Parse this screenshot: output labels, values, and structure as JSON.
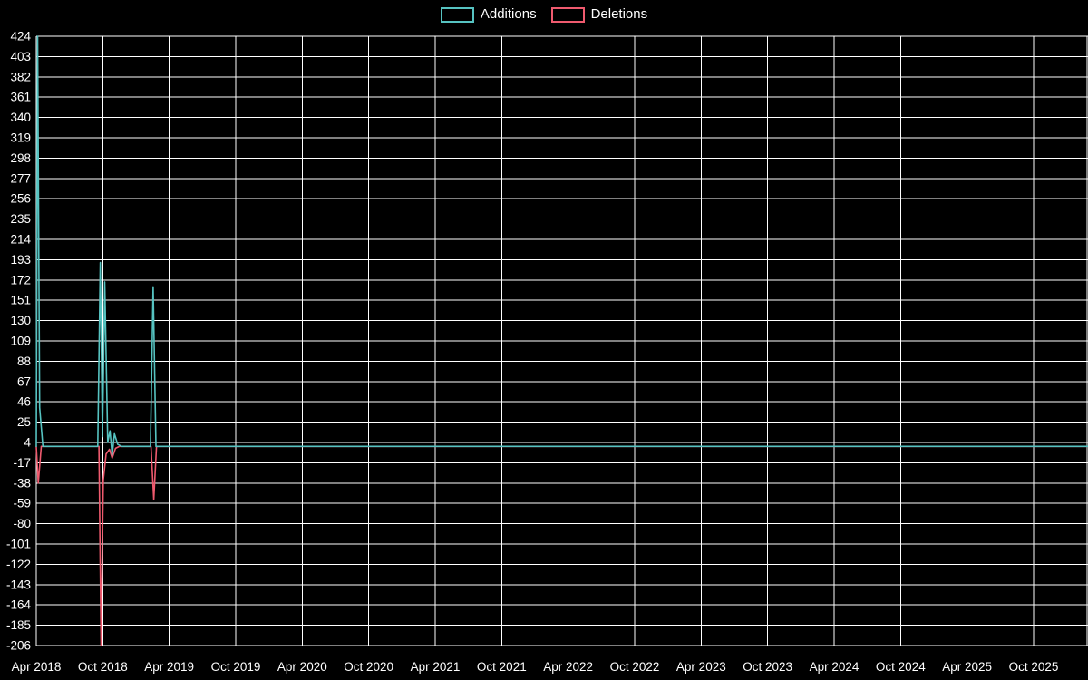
{
  "legend": {
    "items": [
      {
        "label": "Additions",
        "color": "#56C3C1"
      },
      {
        "label": "Deletions",
        "color": "#EF5A6E"
      }
    ]
  },
  "chart_data": {
    "type": "line",
    "title": "",
    "xlabel": "",
    "ylabel": "",
    "legend_position": "top-center",
    "grid": true,
    "background": "#000000",
    "grid_color": "#ffffff",
    "axis_text_color": "#ffffff",
    "x_tick_labels": [
      "Apr 2018",
      "Oct 2018",
      "Apr 2019",
      "Oct 2019",
      "Apr 2020",
      "Oct 2020",
      "Apr 2021",
      "Oct 2021",
      "Apr 2022",
      "Oct 2022",
      "Apr 2023",
      "Oct 2023",
      "Apr 2024",
      "Oct 2024",
      "Apr 2025",
      "Oct 2025"
    ],
    "months_per_tick": 6,
    "x_unit": "months_after_Apr_2018",
    "xlim_months": [
      0,
      95
    ],
    "y_ticks": [
      424,
      403,
      382,
      361,
      340,
      319,
      298,
      277,
      256,
      235,
      214,
      193,
      172,
      151,
      130,
      109,
      88,
      67,
      46,
      25,
      4,
      -17,
      -38,
      -59,
      -80,
      -101,
      -122,
      -143,
      -164,
      -185,
      -206
    ],
    "ylim": [
      -206,
      424
    ],
    "series": [
      {
        "name": "Additions",
        "color": "#56C3C1",
        "points": [
          [
            0,
            0
          ],
          [
            0.12,
            424
          ],
          [
            0.3,
            40
          ],
          [
            0.6,
            0
          ],
          [
            5.55,
            0
          ],
          [
            5.78,
            190
          ],
          [
            5.97,
            10
          ],
          [
            6.18,
            170
          ],
          [
            6.45,
            4
          ],
          [
            6.65,
            16
          ],
          [
            6.85,
            -9
          ],
          [
            7.05,
            13
          ],
          [
            7.35,
            2
          ],
          [
            7.7,
            0
          ],
          [
            10.3,
            0
          ],
          [
            10.55,
            165
          ],
          [
            10.8,
            0
          ],
          [
            95,
            0
          ]
        ]
      },
      {
        "name": "Deletions",
        "color": "#EF5A6E",
        "points": [
          [
            0,
            0
          ],
          [
            0.18,
            -38
          ],
          [
            0.45,
            0
          ],
          [
            5.65,
            0
          ],
          [
            5.85,
            -206
          ],
          [
            6.05,
            -35
          ],
          [
            6.3,
            -8
          ],
          [
            6.6,
            -3
          ],
          [
            6.85,
            -12
          ],
          [
            7.15,
            -2
          ],
          [
            7.5,
            0
          ],
          [
            10.35,
            0
          ],
          [
            10.6,
            -55
          ],
          [
            10.85,
            0
          ],
          [
            95,
            0
          ]
        ]
      }
    ]
  }
}
